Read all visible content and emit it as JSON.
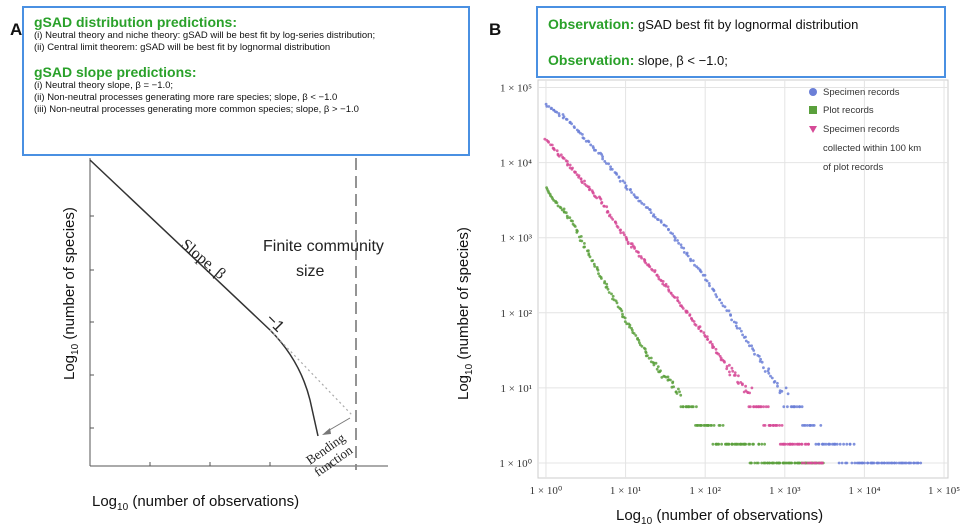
{
  "panel_a": {
    "letter": "A",
    "box": {
      "dist_title": "gSAD distribution predictions:",
      "dist_items": [
        "(i)   Neutral theory and niche theory: gSAD will be best fit by log-series distribution;",
        "(ii)  Central limit theorem: gSAD will be best fit by lognormal distribution"
      ],
      "slope_title": "gSAD slope predictions:",
      "slope_items": [
        "(i)     Neutral theory slope, β = −1.0;",
        "(ii)    Non-neutral processes generating more rare species; slope, β < −1.0",
        "(iii)  Non-neutral processes generating more common species; slope, β > −1.0"
      ]
    },
    "ylabel_prefix": "Log",
    "ylabel_sub": "10",
    "ylabel_rest": " (number of species)",
    "xlabel_prefix": "Log",
    "xlabel_sub": "10",
    "xlabel_rest": " (number of observations)",
    "slope_label": "Slope, β",
    "minus_one": "−1",
    "finite_line1": "Finite community",
    "finite_line2": "size",
    "bending_line1": "Bending",
    "bending_line2": "function"
  },
  "panel_b": {
    "letter": "B",
    "obs1_label": "Observation:",
    "obs1_text": "gSAD best fit by lognormal distribution",
    "obs2_label": "Observation:",
    "obs2_text": "slope, β < −1.0;",
    "ylabel_prefix": "Log",
    "ylabel_sub": "10",
    "ylabel_rest": " (number of species)",
    "xlabel_prefix": "Log",
    "xlabel_sub": "10",
    "xlabel_rest": " (number of observations)"
  },
  "chart_data": [
    {
      "type": "line",
      "title": "",
      "xlabel": "Log10 (number of observations)",
      "ylabel": "Log10 (number of species)",
      "series": [
        {
          "name": "",
          "x": [
            0,
            0.2,
            0.4,
            0.6,
            0.7,
            0.75,
            0.8
          ],
          "y": [
            1,
            0.8,
            0.6,
            0.4,
            0.28,
            0.16,
            0.05
          ]
        }
      ],
      "annotations": [
        "Slope, β",
        "−1",
        "Finite community size",
        "Bending function"
      ],
      "grid": false
    },
    {
      "type": "scatter",
      "title": "",
      "xlabel": "Log10 (number of observations)",
      "ylabel": "Log10 (number of species)",
      "x_scale": "log",
      "y_scale": "log",
      "xlim": [
        1,
        100000
      ],
      "ylim": [
        1,
        100000
      ],
      "x_ticks": [
        1,
        10,
        100,
        1000,
        10000,
        100000
      ],
      "y_ticks": [
        1,
        10,
        100,
        1000,
        10000,
        100000
      ],
      "x_tick_labels": [
        "1 × 10⁰",
        "1 × 10¹",
        "1 × 10²",
        "1 × 10³",
        "1 × 10⁴",
        "1 × 10⁵"
      ],
      "y_tick_labels": [
        "1 × 10⁰",
        "1 × 10¹",
        "1 × 10²",
        "1 × 10³",
        "1 × 10⁴",
        "1 × 10⁵"
      ],
      "grid": true,
      "legend_position": "top-right",
      "series": [
        {
          "name": "Specimen records",
          "color": "#6b7fd7",
          "marker": "circle",
          "x": [
            1,
            2,
            5,
            10,
            30,
            100,
            300,
            1000,
            3000,
            10000,
            50000
          ],
          "y": [
            60000,
            35000,
            12000,
            5000,
            1500,
            300,
            50,
            8,
            2,
            1,
            1
          ]
        },
        {
          "name": "Plot records",
          "color": "#5aa03c",
          "marker": "square",
          "x": [
            1,
            2,
            3,
            5,
            10,
            20,
            50,
            100,
            300,
            1000,
            3000
          ],
          "y": [
            4500,
            1800,
            800,
            300,
            80,
            25,
            8,
            3,
            1.5,
            1,
            1
          ]
        },
        {
          "name": "Specimen records collected within 100 km of plot records",
          "color": "#d64a97",
          "marker": "triangle-down",
          "x": [
            1,
            2,
            5,
            10,
            30,
            100,
            300,
            1000,
            3000
          ],
          "y": [
            20000,
            9000,
            3000,
            1000,
            250,
            50,
            10,
            2,
            1
          ]
        }
      ],
      "legend_labels": [
        "Specimen records",
        "Plot records",
        "Specimen records",
        "collected within 100 km",
        "of plot records"
      ]
    }
  ]
}
